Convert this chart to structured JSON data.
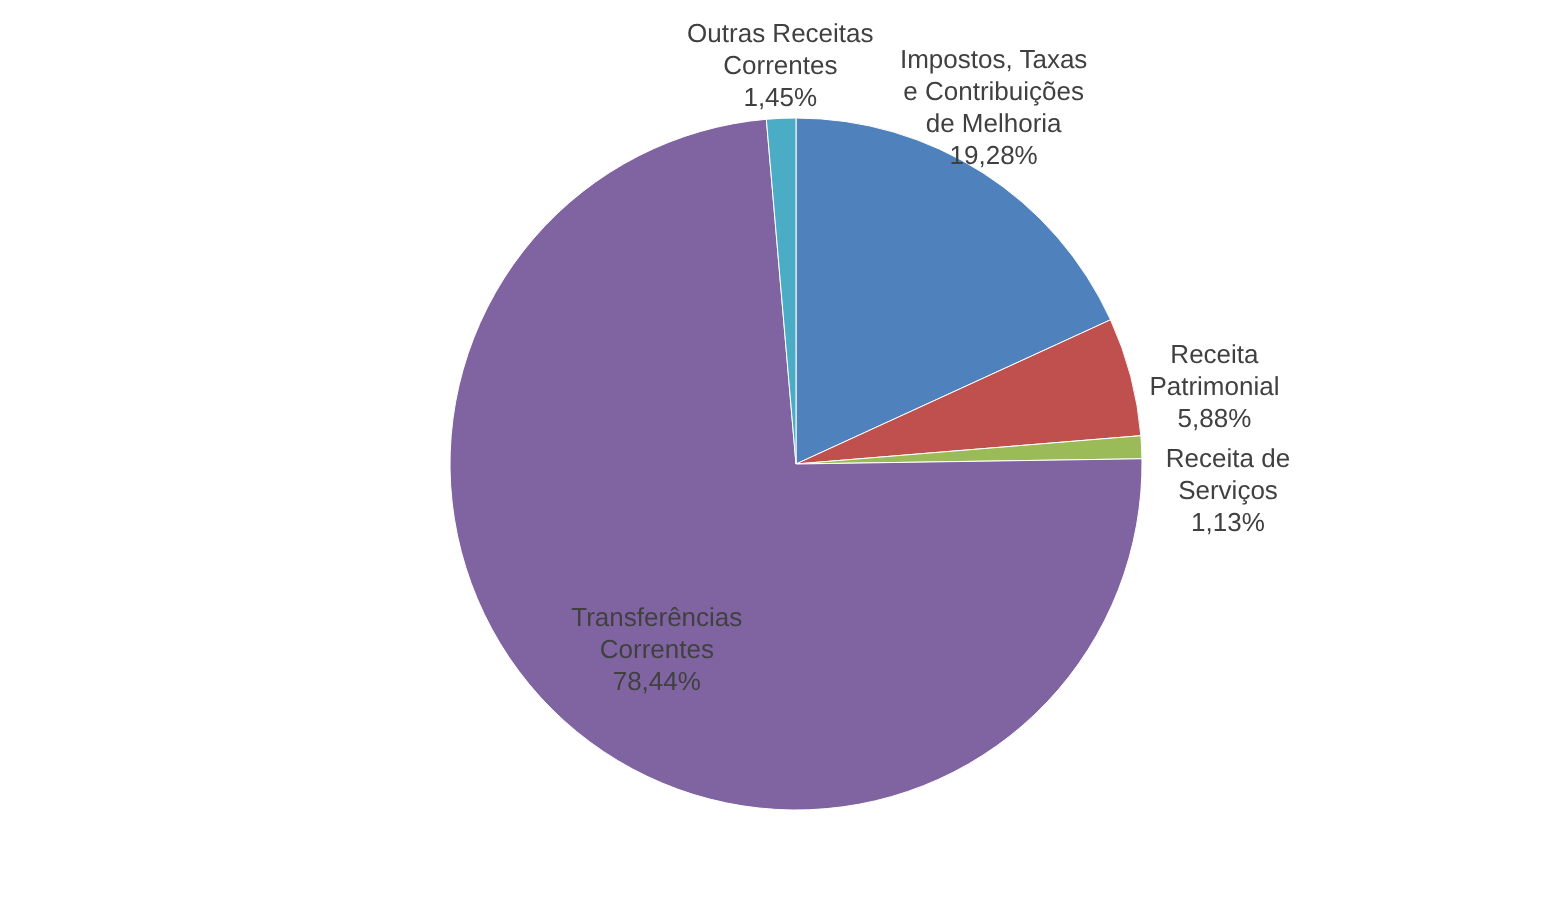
{
  "chart_data": {
    "type": "pie",
    "categories": [
      "Impostos, Taxas e Contribuições de Melhoria",
      "Receita Patrimonial",
      "Receita de Serviços",
      "Transferências Correntes",
      "Outras Receitas Correntes"
    ],
    "values": [
      19.28,
      5.88,
      1.13,
      78.44,
      1.45
    ],
    "colors": [
      "#4f81bd",
      "#c0504d",
      "#9bbb59",
      "#8064a2",
      "#4bacc6"
    ],
    "value_labels": [
      "19,28%",
      "5,88%",
      "1,13%",
      "78,44%",
      "1,45%"
    ]
  }
}
